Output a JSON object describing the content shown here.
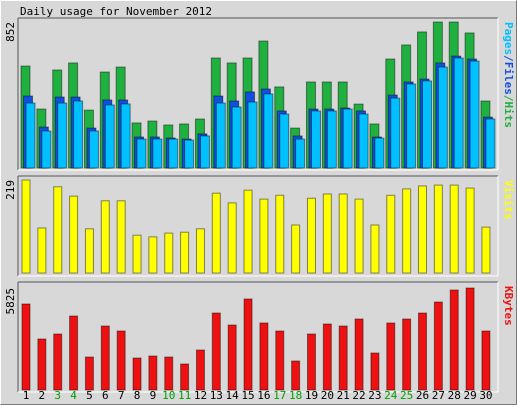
{
  "title": "Daily usage for November 2012",
  "chart_data": [
    {
      "type": "bar",
      "ylim": [
        0,
        852
      ],
      "yticks": [
        852
      ],
      "legend_separator": "/",
      "series": [
        {
          "name": "Pages",
          "color": "#00c0ff",
          "values": [
            379,
            216,
            379,
            391,
            216,
            368,
            374,
            169,
            169,
            169,
            163,
            187,
            379,
            356,
            385,
            432,
            315,
            169,
            333,
            333,
            344,
            315,
            175,
            408,
            490,
            508,
            589,
            642,
            624,
            286
          ]
        },
        {
          "name": "Files",
          "color": "#1050e0",
          "values": [
            420,
            239,
            414,
            414,
            233,
            397,
            397,
            181,
            181,
            175,
            169,
            199,
            420,
            391,
            444,
            461,
            333,
            187,
            344,
            344,
            350,
            333,
            181,
            426,
            502,
            519,
            613,
            653,
            636,
            297
          ]
        },
        {
          "name": "Hits",
          "color": "#20b040",
          "values": [
            595,
            344,
            572,
            613,
            338,
            560,
            589,
            263,
            274,
            251,
            257,
            286,
            642,
            613,
            642,
            741,
            473,
            233,
            502,
            502,
            502,
            373,
            257,
            636,
            718,
            794,
            852,
            852,
            788,
            391
          ]
        }
      ]
    },
    {
      "type": "bar",
      "ylim": [
        0,
        219
      ],
      "yticks": [
        219
      ],
      "series": [
        {
          "name": "Visits",
          "color": "#ffff00",
          "values": [
            219,
            106,
            203,
            181,
            104,
            170,
            170,
            89,
            85,
            94,
            96,
            104,
            188,
            165,
            195,
            174,
            183,
            113,
            176,
            186,
            186,
            174,
            113,
            183,
            198,
            205,
            207,
            207,
            200,
            108
          ]
        }
      ]
    },
    {
      "type": "bar",
      "ylim": [
        0,
        5825
      ],
      "yticks": [
        5825
      ],
      "series": [
        {
          "name": "KBytes",
          "color": "#ee1111",
          "values": [
            4911,
            2912,
            3198,
            4226,
            1884,
            3655,
            3369,
            1827,
            1941,
            1884,
            1485,
            2284,
            4397,
            3712,
            5197,
            3827,
            3369,
            1656,
            3198,
            3769,
            3655,
            4055,
            2113,
            3827,
            4055,
            4397,
            5026,
            5711,
            5825,
            3369
          ]
        }
      ],
      "categories": [
        "1",
        "2",
        "3",
        "4",
        "5",
        "6",
        "7",
        "8",
        "9",
        "10",
        "11",
        "12",
        "13",
        "14",
        "15",
        "16",
        "17",
        "18",
        "19",
        "20",
        "21",
        "22",
        "23",
        "24",
        "25",
        "26",
        "27",
        "28",
        "29",
        "30"
      ],
      "category_colors": [
        "#000000",
        "#000000",
        "#00a000",
        "#00a000",
        "#000000",
        "#000000",
        "#000000",
        "#000000",
        "#000000",
        "#00a000",
        "#00a000",
        "#000000",
        "#000000",
        "#000000",
        "#000000",
        "#000000",
        "#00a000",
        "#00a000",
        "#000000",
        "#000000",
        "#000000",
        "#000000",
        "#000000",
        "#00a000",
        "#00a000",
        "#000000",
        "#000000",
        "#000000",
        "#000000",
        "#000000"
      ]
    }
  ]
}
